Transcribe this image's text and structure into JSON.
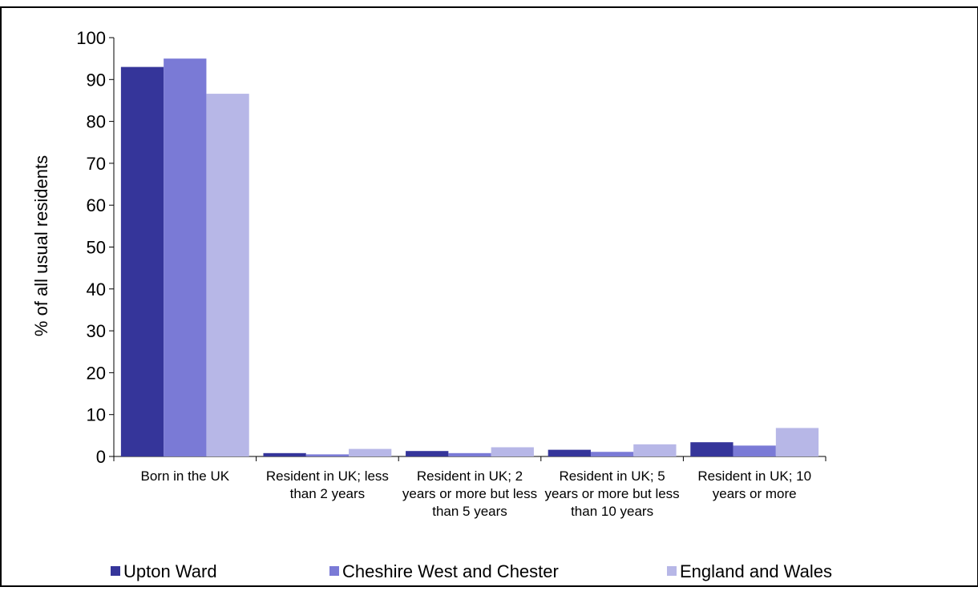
{
  "chart_data": {
    "type": "bar",
    "title": "",
    "xlabel": "",
    "ylabel": "% of all usual residents",
    "ylim": [
      0,
      100
    ],
    "yticks": [
      0,
      10,
      20,
      30,
      40,
      50,
      60,
      70,
      80,
      90,
      100
    ],
    "grid": false,
    "legend_position": "bottom",
    "categories": [
      [
        "Born in the UK"
      ],
      [
        "Resident in UK; less",
        "than 2 years"
      ],
      [
        "Resident in UK; 2",
        "years or more but less",
        "than 5 years"
      ],
      [
        "Resident in UK; 5",
        "years or more but less",
        "than 10 years"
      ],
      [
        "Resident in UK; 10",
        "years or more"
      ]
    ],
    "series": [
      {
        "name": "Upton Ward",
        "color": "#35359a",
        "values": [
          93.0,
          0.8,
          1.3,
          1.6,
          3.4
        ]
      },
      {
        "name": "Cheshire West and Chester",
        "color": "#7a7ad6",
        "values": [
          95.0,
          0.5,
          0.8,
          1.1,
          2.6
        ]
      },
      {
        "name": "England and Wales",
        "color": "#b7b7e7",
        "values": [
          86.6,
          1.8,
          2.2,
          2.9,
          6.8
        ]
      }
    ]
  }
}
